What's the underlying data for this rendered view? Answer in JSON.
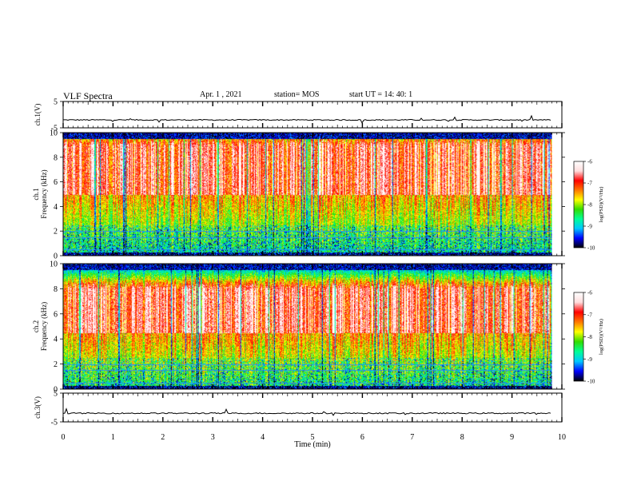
{
  "header": {
    "title": "VLF Spectra",
    "date": "Apr. 1 , 2021",
    "station": "station= MOS",
    "start": "start UT = 14: 40: 1"
  },
  "chart_data": [
    {
      "type": "line",
      "panel": "ch1-waveform",
      "ylabel": "ch.1(V)",
      "ylim": [
        -5,
        5
      ],
      "yticks": [
        "5",
        "-5"
      ],
      "trace_level": -2,
      "grid": false
    },
    {
      "type": "heatmap",
      "panel": "ch1-spectrogram",
      "ylabel_line1": "ch.1",
      "ylabel_line2": "Frequency (kHz)",
      "ylim": [
        0,
        10
      ],
      "yticks": [
        "0",
        "2",
        "4",
        "6",
        "8",
        "10"
      ],
      "colorbar": {
        "label": "log(PSD)(V²/Hz)",
        "range": [
          -10,
          -6
        ],
        "ticks": [
          "-6",
          "-7",
          "-8",
          "-9",
          "-10"
        ]
      },
      "intense_band_khz": [
        5,
        9
      ],
      "interference_lines_khz": [
        0.5,
        1.5,
        2.0
      ]
    },
    {
      "type": "heatmap",
      "panel": "ch2-spectrogram",
      "ylabel_line1": "ch.2",
      "ylabel_line2": "Frequency (kHz)",
      "ylim": [
        0,
        10
      ],
      "yticks": [
        "0",
        "2",
        "4",
        "6",
        "8",
        "10"
      ],
      "colorbar": {
        "label": "log(PSD)(V²/Hz)",
        "range": [
          -10,
          -6
        ],
        "ticks": [
          "-6",
          "-7",
          "-8",
          "-9",
          "-10"
        ]
      },
      "intense_band_khz": [
        4.5,
        8
      ],
      "interference_lines_khz": [
        0.5,
        1.5,
        2.0
      ]
    },
    {
      "type": "line",
      "panel": "ch3-waveform",
      "ylabel": "ch.3(V)",
      "ylim": [
        -5,
        5
      ],
      "yticks": [
        "5",
        "-5"
      ],
      "trace_level": -2,
      "grid": false
    }
  ],
  "x_axis": {
    "label": "Time (min)",
    "xlim": [
      0,
      10
    ],
    "ticks": [
      "0",
      "1",
      "2",
      "3",
      "4",
      "5",
      "6",
      "7",
      "8",
      "9",
      "10"
    ],
    "data_end_min": 9.8
  },
  "colors": {
    "scale": [
      "#000000",
      "#0000ff",
      "#00c8ff",
      "#00ff96",
      "#32dc00",
      "#ffff00",
      "#ff7800",
      "#ff0000",
      "#ffdcdc",
      "#ffffff"
    ]
  }
}
